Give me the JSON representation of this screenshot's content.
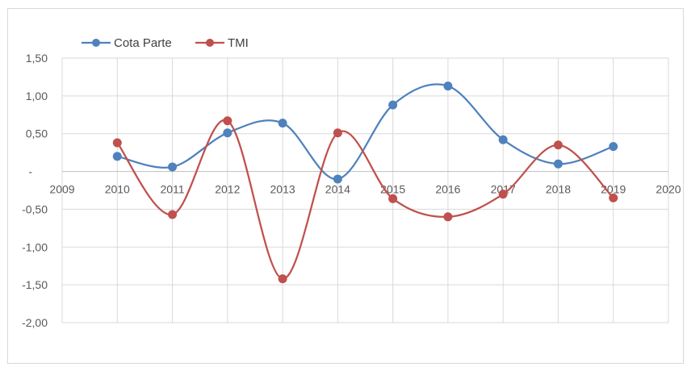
{
  "chart_data": {
    "type": "line",
    "title": "",
    "xlabel": "",
    "ylabel": "",
    "x": [
      2010,
      2011,
      2012,
      2013,
      2014,
      2015,
      2016,
      2017,
      2018,
      2019
    ],
    "xlim": [
      2009,
      2020
    ],
    "ylim": [
      -2.0,
      1.5
    ],
    "x_ticks": [
      "2009",
      "2010",
      "2011",
      "2012",
      "2013",
      "2014",
      "2015",
      "2016",
      "2017",
      "2018",
      "2019",
      "2020"
    ],
    "y_ticks": [
      {
        "value": 1.5,
        "label": "1,50"
      },
      {
        "value": 1.0,
        "label": "1,00"
      },
      {
        "value": 0.5,
        "label": "0,50"
      },
      {
        "value": 0.0,
        "label": "-"
      },
      {
        "value": -0.5,
        "label": "-0,50"
      },
      {
        "value": -1.0,
        "label": "-1,00"
      },
      {
        "value": -1.5,
        "label": "-1,50"
      },
      {
        "value": -2.0,
        "label": "-2,00"
      }
    ],
    "grid": true,
    "smooth": true,
    "legend_position": "top-left",
    "series": [
      {
        "name": "Cota Parte",
        "color": "#4f81bd",
        "values": [
          0.2,
          0.06,
          0.51,
          0.64,
          -0.1,
          0.88,
          1.13,
          0.42,
          0.1,
          0.33
        ]
      },
      {
        "name": "TMI",
        "color": "#c0504d",
        "values": [
          0.38,
          -0.57,
          0.67,
          -1.42,
          0.51,
          -0.36,
          -0.6,
          -0.3,
          0.35,
          -0.35
        ]
      }
    ]
  }
}
